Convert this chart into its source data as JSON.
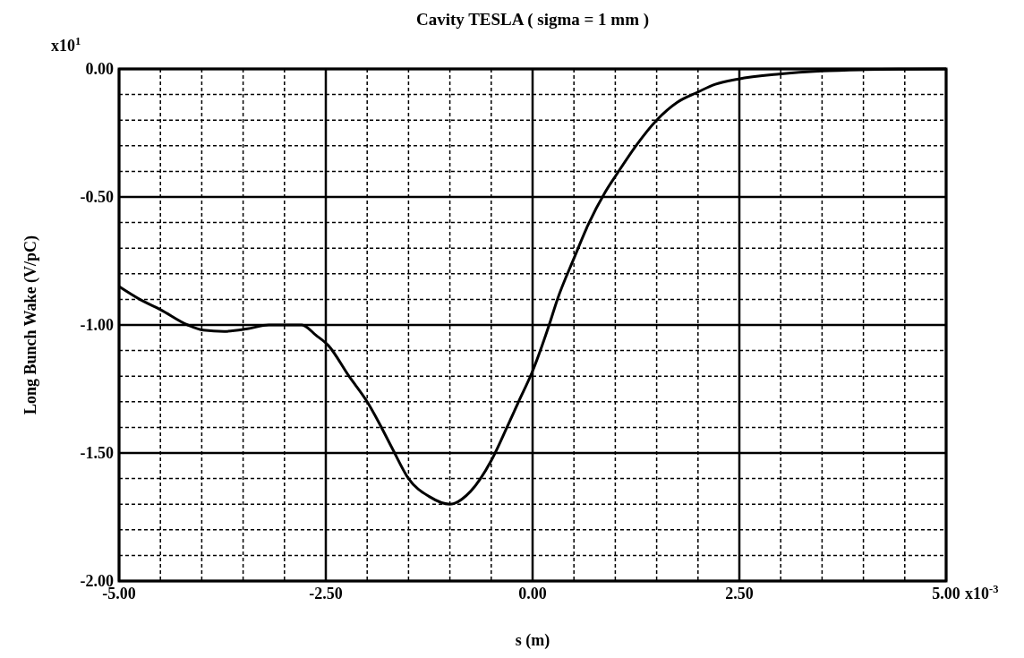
{
  "chart_data": {
    "type": "line",
    "title": "Cavity TESLA ( sigma = 1 mm )",
    "xlabel": "s (m)",
    "ylabel": "Long Bunch Wake (V/pC)",
    "annotations": [
      "x10$^{1}$",
      "x10$^{-3}$"
    ],
    "x": [
      -5.0,
      -4.75,
      -4.5,
      -4.17,
      -3.98,
      -3.73,
      -3.45,
      -3.19,
      -2.98,
      -2.79,
      -2.62,
      -2.47,
      -2.22,
      -2.0,
      -1.86,
      -1.7,
      -1.5,
      -1.25,
      -1.0,
      -0.75,
      -0.5,
      -0.31,
      -0.17,
      0.0,
      0.2,
      0.3,
      0.5,
      0.67,
      0.88,
      1.02,
      1.25,
      1.5,
      1.75,
      2.0,
      2.21,
      2.48,
      2.98,
      3.5,
      4.0,
      4.5,
      5.0
    ],
    "series": [
      {
        "color": "#000000",
        "values": [
          -0.85,
          -0.9,
          -0.94,
          -1.0,
          -1.02,
          -1.025,
          -1.015,
          -1.0,
          -1.0,
          -1.0,
          -1.04,
          -1.08,
          -1.2,
          -1.3,
          -1.38,
          -1.48,
          -1.6,
          -1.67,
          -1.7,
          -1.65,
          -1.53,
          -1.4,
          -1.3,
          -1.18,
          -1.0,
          -0.9,
          -0.74,
          -0.61,
          -0.48,
          -0.41,
          -0.3,
          -0.2,
          -0.13,
          -0.09,
          -0.06,
          -0.04,
          -0.02,
          -0.008,
          -0.003,
          -0.001,
          0.0
        ]
      }
    ],
    "xlim": [
      -5,
      5
    ],
    "ylim": [
      -2,
      0
    ],
    "xticks": [
      {
        "value": -5,
        "label": "-5.00"
      },
      {
        "value": -4.5,
        "label": null
      },
      {
        "value": -4,
        "label": null
      },
      {
        "value": -3.5,
        "label": null
      },
      {
        "value": -3,
        "label": null
      },
      {
        "value": -2.5,
        "label": "-2.50"
      },
      {
        "value": -2,
        "label": null
      },
      {
        "value": -1.5,
        "label": null
      },
      {
        "value": -1,
        "label": null
      },
      {
        "value": -0.5,
        "label": null
      },
      {
        "value": 0,
        "label": "0.00"
      },
      {
        "value": 0.5,
        "label": null
      },
      {
        "value": 1,
        "label": null
      },
      {
        "value": 1.5,
        "label": null
      },
      {
        "value": 2,
        "label": null
      },
      {
        "value": 2.5,
        "label": "2.50"
      },
      {
        "value": 3,
        "label": null
      },
      {
        "value": 3.5,
        "label": null
      },
      {
        "value": 4,
        "label": null
      },
      {
        "value": 4.5,
        "label": null
      },
      {
        "value": 5,
        "label": "5.00"
      }
    ],
    "yticks": [
      {
        "value": -2,
        "label": "-2.00"
      },
      {
        "value": -1.9,
        "label": null
      },
      {
        "value": -1.8,
        "label": null
      },
      {
        "value": -1.7,
        "label": null
      },
      {
        "value": -1.6,
        "label": null
      },
      {
        "value": -1.5,
        "label": "-1.50"
      },
      {
        "value": -1.4,
        "label": null
      },
      {
        "value": -1.3,
        "label": null
      },
      {
        "value": -1.2,
        "label": null
      },
      {
        "value": -1.1,
        "label": null
      },
      {
        "value": -1,
        "label": "-1.00"
      },
      {
        "value": -0.9,
        "label": null
      },
      {
        "value": -0.8,
        "label": null
      },
      {
        "value": -0.7,
        "label": null
      },
      {
        "value": -0.6,
        "label": null
      },
      {
        "value": -0.5,
        "label": "-0.50"
      },
      {
        "value": -0.4,
        "label": null
      },
      {
        "value": -0.3,
        "label": null
      },
      {
        "value": -0.2,
        "label": null
      },
      {
        "value": -0.1,
        "label": null
      },
      {
        "value": 0,
        "label": "0.00"
      }
    ],
    "grid": true,
    "marker": "none",
    "line_style": "solid"
  }
}
